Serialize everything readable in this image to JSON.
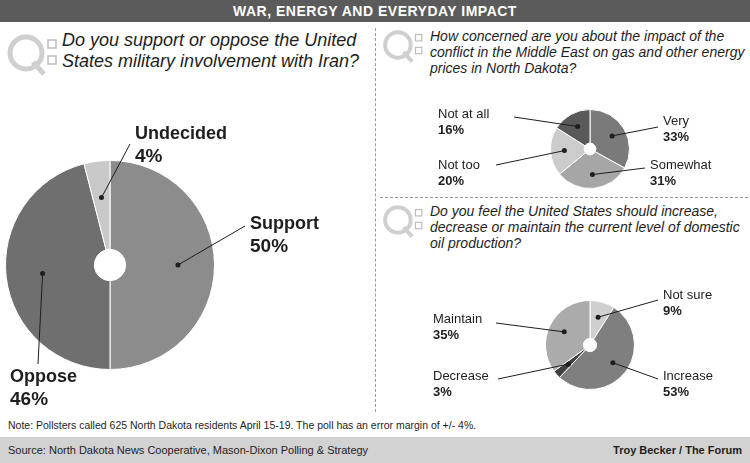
{
  "header": {
    "title": "WAR, ENERGY AND EVERYDAY IMPACT"
  },
  "chart_data": [
    {
      "type": "doughnut",
      "title": "Do you support or oppose the United States military involvement with Iran?",
      "categories": [
        "Support",
        "Oppose",
        "Undecided"
      ],
      "values": [
        50,
        46,
        4
      ],
      "value_labels": [
        "50%",
        "46%",
        "4%"
      ],
      "colors": [
        "#8c8c8c",
        "#6f6f6f",
        "#c9c9c9"
      ],
      "data_labels": true
    },
    {
      "type": "doughnut",
      "title": "How concerned are you about the impact of the conflict in the Middle East on gas and other energy prices in North Dakota?",
      "categories": [
        "Very",
        "Somewhat",
        "Not too",
        "Not at all"
      ],
      "values": [
        33,
        31,
        20,
        16
      ],
      "value_labels": [
        "33%",
        "31%",
        "20%",
        "16%"
      ],
      "colors": [
        "#7a7a7a",
        "#a6a6a6",
        "#cccccc",
        "#595959"
      ],
      "data_labels": true
    },
    {
      "type": "doughnut",
      "title": "Do you feel the United States should increase, decrease or maintain the current level of domestic oil production?",
      "categories": [
        "Not sure",
        "Increase",
        "Decrease",
        "Maintain"
      ],
      "values": [
        9,
        53,
        3,
        35
      ],
      "value_labels": [
        "9%",
        "53%",
        "3%",
        "35%"
      ],
      "colors": [
        "#cfcfcf",
        "#7f7f7f",
        "#3f3f3f",
        "#ababab"
      ],
      "data_labels": true
    }
  ],
  "note": "Note: Pollsters called 625 North Dakota residents April 15-19. The poll has an error margin of +/- 4%.",
  "source": "Source: North Dakota News Cooperative, Mason-Dixon Polling & Strategy",
  "credit": "Troy Becker / The Forum"
}
